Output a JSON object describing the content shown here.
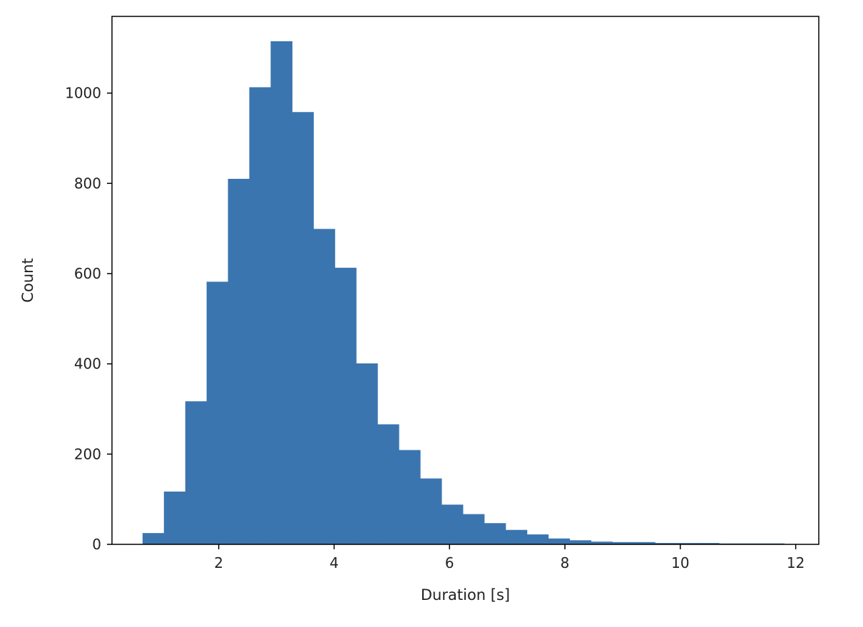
{
  "chart_data": {
    "type": "bar",
    "title": "",
    "xlabel": "Duration [s]",
    "ylabel": "Count",
    "xlim": [
      0.15,
      12.4
    ],
    "ylim": [
      0,
      1170
    ],
    "xticks": [
      2,
      4,
      6,
      8,
      10,
      12
    ],
    "yticks": [
      0,
      200,
      400,
      600,
      800,
      1000
    ],
    "grid": false,
    "legend": "none",
    "bar_color": "#3b75af",
    "bins": [
      {
        "x0": 0.68,
        "x1": 1.05,
        "count": 25
      },
      {
        "x0": 1.05,
        "x1": 1.42,
        "count": 117
      },
      {
        "x0": 1.42,
        "x1": 1.79,
        "count": 317
      },
      {
        "x0": 1.79,
        "x1": 2.16,
        "count": 582
      },
      {
        "x0": 2.16,
        "x1": 2.53,
        "count": 810
      },
      {
        "x0": 2.53,
        "x1": 2.9,
        "count": 1013
      },
      {
        "x0": 2.9,
        "x1": 3.27,
        "count": 1115
      },
      {
        "x0": 3.27,
        "x1": 3.64,
        "count": 958
      },
      {
        "x0": 3.64,
        "x1": 4.01,
        "count": 699
      },
      {
        "x0": 4.01,
        "x1": 4.38,
        "count": 613
      },
      {
        "x0": 4.38,
        "x1": 4.75,
        "count": 401
      },
      {
        "x0": 4.75,
        "x1": 5.12,
        "count": 266
      },
      {
        "x0": 5.12,
        "x1": 5.49,
        "count": 209
      },
      {
        "x0": 5.49,
        "x1": 5.86,
        "count": 146
      },
      {
        "x0": 5.86,
        "x1": 6.23,
        "count": 88
      },
      {
        "x0": 6.23,
        "x1": 6.6,
        "count": 67
      },
      {
        "x0": 6.6,
        "x1": 6.97,
        "count": 47
      },
      {
        "x0": 6.97,
        "x1": 7.34,
        "count": 32
      },
      {
        "x0": 7.34,
        "x1": 7.71,
        "count": 22
      },
      {
        "x0": 7.71,
        "x1": 8.08,
        "count": 13
      },
      {
        "x0": 8.08,
        "x1": 8.45,
        "count": 9
      },
      {
        "x0": 8.45,
        "x1": 8.82,
        "count": 6
      },
      {
        "x0": 8.82,
        "x1": 9.19,
        "count": 5
      },
      {
        "x0": 9.19,
        "x1": 9.56,
        "count": 5
      },
      {
        "x0": 9.56,
        "x1": 9.93,
        "count": 3
      },
      {
        "x0": 9.93,
        "x1": 10.3,
        "count": 3
      },
      {
        "x0": 10.3,
        "x1": 10.67,
        "count": 3
      },
      {
        "x0": 10.67,
        "x1": 11.04,
        "count": 2
      },
      {
        "x0": 11.04,
        "x1": 11.41,
        "count": 2
      },
      {
        "x0": 11.41,
        "x1": 11.8,
        "count": 2
      }
    ]
  }
}
